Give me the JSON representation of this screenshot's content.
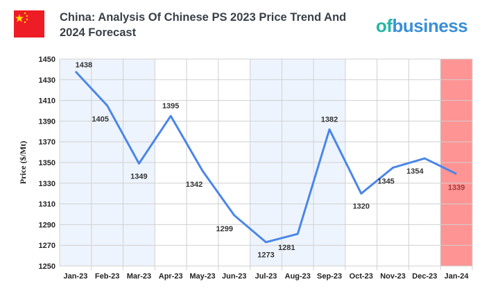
{
  "header": {
    "title": "China: Analysis Of Chinese PS 2023 Price Trend And 2024 Forecast",
    "logo_text": "ofbusiness",
    "flag_icon": "china-flag-icon"
  },
  "chart_data": {
    "type": "line",
    "title": "China: Analysis Of Chinese PS 2023 Price Trend And 2024 Forecast",
    "xlabel": "",
    "ylabel": "Price ($/Mt)",
    "categories": [
      "Jan-23",
      "Feb-23",
      "Mar-23",
      "Apr-23",
      "May-23",
      "Jun-23",
      "Jul-23",
      "Aug-23",
      "Sep-23",
      "Oct-23",
      "Nov-23",
      "Dec-23",
      "Jan-24"
    ],
    "values": [
      1438,
      1405,
      1349,
      1395,
      1342,
      1299,
      1273,
      1281,
      1382,
      1320,
      1345,
      1354,
      1339
    ],
    "ylim": [
      1250,
      1450
    ],
    "yticks": [
      1250,
      1270,
      1290,
      1310,
      1330,
      1350,
      1370,
      1390,
      1410,
      1430,
      1450
    ],
    "grid": true,
    "shaded_quarters": [
      "Jan-23 to Mar-23",
      "Jul-23 to Sep-23"
    ],
    "forecast_category": "Jan-24",
    "colors": {
      "line": "#4a86e8",
      "shade": "#eef4fd",
      "forecast": "#ff9494",
      "forecast_label": "#a33a3a",
      "grid": "#d0d0d0"
    }
  }
}
